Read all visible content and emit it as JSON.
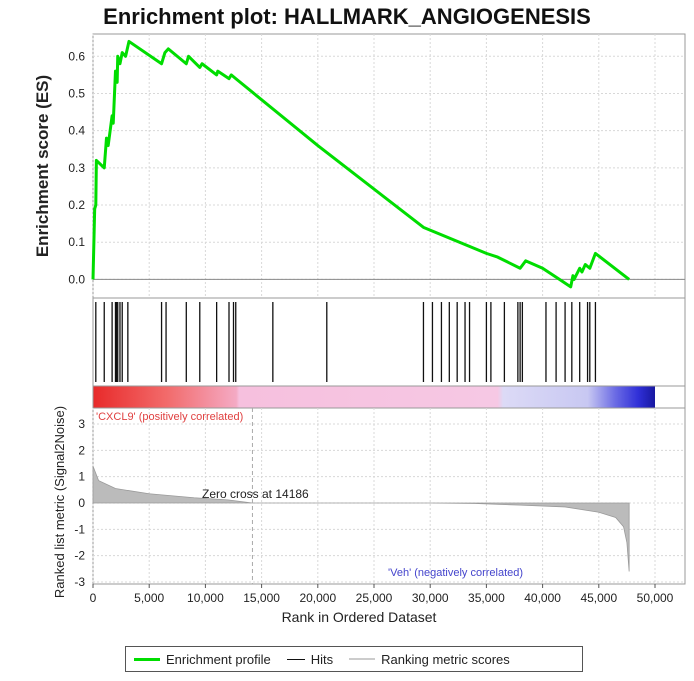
{
  "title": "Enrichment plot: HALLMARK_ANGIOGENESIS",
  "colors": {
    "profile": "#00dd00",
    "hits": "#111111",
    "metric": "#bbbbbb",
    "grid": "#d8d8d8",
    "positive_label": "#e04040",
    "negative_label": "#4444cc"
  },
  "chart_data": {
    "type": "line",
    "title": "Enrichment plot: HALLMARK_ANGIOGENESIS",
    "xlabel": "Rank in Ordered Dataset",
    "xlim": [
      0,
      50000
    ],
    "x_ticks": [
      "0",
      "5,000",
      "10,000",
      "15,000",
      "20,000",
      "25,000",
      "30,000",
      "35,000",
      "40,000",
      "45,000",
      "50,000"
    ],
    "enrichment": {
      "ylabel": "Enrichment score (ES)",
      "ylim": [
        -0.05,
        0.66
      ],
      "y_ticks": [
        "0.0",
        "0.1",
        "0.2",
        "0.3",
        "0.4",
        "0.5",
        "0.6"
      ],
      "series": [
        {
          "name": "Enrichment profile",
          "x": [
            0,
            150,
            250,
            300,
            1000,
            1200,
            1350,
            1700,
            1800,
            2000,
            2150,
            2200,
            2400,
            2600,
            2900,
            3200,
            6100,
            6400,
            6700,
            8300,
            8500,
            9500,
            9700,
            11000,
            11100,
            12100,
            12300,
            12700,
            20000,
            29400,
            35000,
            36000,
            38000,
            38500,
            40000,
            41500,
            42500,
            42700,
            42800,
            43300,
            43500,
            43800,
            44200,
            44700,
            47700
          ],
          "y": [
            0.0,
            0.19,
            0.2,
            0.32,
            0.3,
            0.38,
            0.36,
            0.44,
            0.42,
            0.56,
            0.53,
            0.6,
            0.58,
            0.61,
            0.6,
            0.64,
            0.58,
            0.61,
            0.62,
            0.58,
            0.6,
            0.57,
            0.58,
            0.55,
            0.56,
            0.54,
            0.55,
            0.54,
            0.36,
            0.14,
            0.07,
            0.06,
            0.03,
            0.05,
            0.03,
            0.0,
            -0.02,
            0.01,
            0.0,
            0.03,
            0.02,
            0.04,
            0.03,
            0.07,
            0.0
          ]
        }
      ]
    },
    "hits": {
      "name": "Hits",
      "positions": [
        250,
        1000,
        1700,
        2000,
        2100,
        2200,
        2400,
        2600,
        3100,
        6100,
        6500,
        8300,
        9500,
        11000,
        12100,
        12500,
        12700,
        16000,
        20800,
        29400,
        30200,
        31000,
        31700,
        32400,
        33100,
        33500,
        35000,
        35400,
        36600,
        37800,
        38000,
        38200,
        40300,
        41200,
        42000,
        42600,
        43300,
        44000,
        44200,
        44700
      ]
    },
    "ranking_metric": {
      "name": "Ranking metric scores",
      "ylabel": "Ranked list metric (Signal2Noise)",
      "ylim": [
        -3,
        3
      ],
      "y_ticks": [
        "3",
        "2",
        "1",
        "0",
        "-1",
        "-2",
        "-3"
      ],
      "zero_cross": 14186,
      "zero_cross_label": "Zero cross at 14186",
      "positive_label": "'CXCL9' (positively correlated)",
      "negative_label": "'Veh' (negatively correlated)",
      "profile": {
        "x": [
          0,
          500,
          2000,
          5000,
          9000,
          12000,
          14186,
          20000,
          30000,
          34000,
          38000,
          42000,
          45000,
          46500,
          47200,
          47500,
          47700
        ],
        "y": [
          1.4,
          0.85,
          0.55,
          0.35,
          0.2,
          0.12,
          0.0,
          0.0,
          0.0,
          -0.02,
          -0.08,
          -0.15,
          -0.35,
          -0.55,
          -0.9,
          -1.5,
          -2.6
        ]
      }
    },
    "legend": [
      "Enrichment profile",
      "Hits",
      "Ranking metric scores"
    ]
  }
}
